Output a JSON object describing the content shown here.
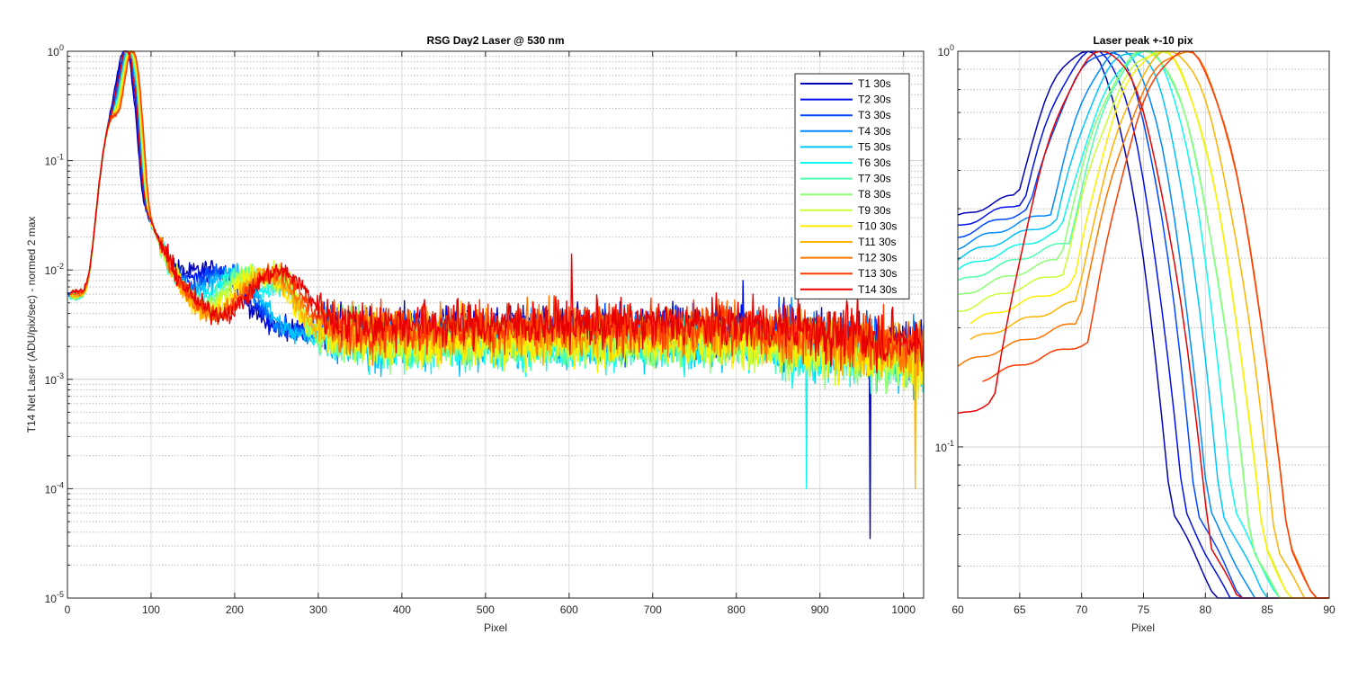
{
  "chart_data": [
    {
      "type": "line",
      "title": "RSG  Day2 Laser @ 530 nm",
      "xlabel": "Pixel",
      "ylabel": "T14 Net Laser (ADU/pix/sec) - normed 2 max",
      "xlim": [
        0,
        1024
      ],
      "ylim": [
        1e-05,
        1
      ],
      "yscale": "log",
      "grid": true,
      "legend_position": "top-right",
      "x_ticks": [
        "0",
        "100",
        "200",
        "300",
        "400",
        "500",
        "600",
        "700",
        "800",
        "900",
        "1000"
      ],
      "y_ticks": [
        {
          "base": "10",
          "exp": "0"
        },
        {
          "base": "10",
          "exp": "-1"
        },
        {
          "base": "10",
          "exp": "-2"
        },
        {
          "base": "10",
          "exp": "-3"
        },
        {
          "base": "10",
          "exp": "-4"
        },
        {
          "base": "10",
          "exp": "-5"
        }
      ],
      "series": [
        {
          "name": "T1 30s",
          "color": "#0000b5",
          "peak_x": 70,
          "offset": 0,
          "floor": 0.0028
        },
        {
          "name": "T2 30s",
          "color": "#0010ea",
          "peak_x": 71,
          "offset": 1,
          "floor": 0.0028
        },
        {
          "name": "T3 30s",
          "color": "#0048ff",
          "peak_x": 72,
          "offset": 1,
          "floor": 0.0027
        },
        {
          "name": "T4 30s",
          "color": "#0088ff",
          "peak_x": 73,
          "offset": 1,
          "floor": 0.0026
        },
        {
          "name": "T5 30s",
          "color": "#00c4ff",
          "peak_x": 74,
          "offset": 2,
          "floor": 0.0024
        },
        {
          "name": "T6 30s",
          "color": "#10f8ee",
          "peak_x": 75,
          "offset": 2,
          "floor": 0.0023
        },
        {
          "name": "T7 30s",
          "color": "#50ffae",
          "peak_x": 75,
          "offset": 2,
          "floor": 0.0024
        },
        {
          "name": "T8 30s",
          "color": "#8cff72",
          "peak_x": 75,
          "offset": 3,
          "floor": 0.0025
        },
        {
          "name": "T9 30s",
          "color": "#c8ff36",
          "peak_x": 76,
          "offset": 3,
          "floor": 0.0026
        },
        {
          "name": "T10 30s",
          "color": "#ffee00",
          "peak_x": 76,
          "offset": 3,
          "floor": 0.0025
        },
        {
          "name": "T11 30s",
          "color": "#ffb200",
          "peak_x": 77,
          "offset": 3,
          "floor": 0.0026
        },
        {
          "name": "T12 30s",
          "color": "#ff7600",
          "peak_x": 78,
          "offset": 4,
          "floor": 0.0028
        },
        {
          "name": "T13 30s",
          "color": "#ff3a00",
          "peak_x": 78,
          "offset": 4,
          "floor": 0.003
        },
        {
          "name": "T14 30s",
          "color": "#e80000",
          "peak_x": 72,
          "offset": 4,
          "floor": 0.0032
        }
      ],
      "spikes": [
        {
          "x": 603,
          "y": 0.014,
          "series": "T14 30s"
        },
        {
          "x": 808,
          "y": 0.008,
          "series": "T2 30s"
        },
        {
          "x": 820,
          "y": 0.006,
          "series": "T14 30s"
        },
        {
          "x": 945,
          "y": 0.006,
          "series": "T14 30s"
        },
        {
          "x": 960,
          "y": 3.5e-05,
          "series": "T1 30s"
        },
        {
          "x": 884,
          "y": 0.0001,
          "series": "T6 30s"
        },
        {
          "x": 1014,
          "y": 0.0001,
          "series": "T11 30s"
        }
      ]
    },
    {
      "type": "line",
      "title": "Laser peak +-10 pix",
      "xlabel": "Pixel",
      "xlim": [
        60,
        90
      ],
      "ylim": [
        0.0415,
        1
      ],
      "yscale": "log",
      "grid": true,
      "x_ticks": [
        "60",
        "65",
        "70",
        "75",
        "80",
        "85",
        "90"
      ],
      "y_ticks": [
        {
          "base": "10",
          "exp": "0"
        },
        {
          "base": "10",
          "exp": "-1"
        }
      ]
    }
  ]
}
